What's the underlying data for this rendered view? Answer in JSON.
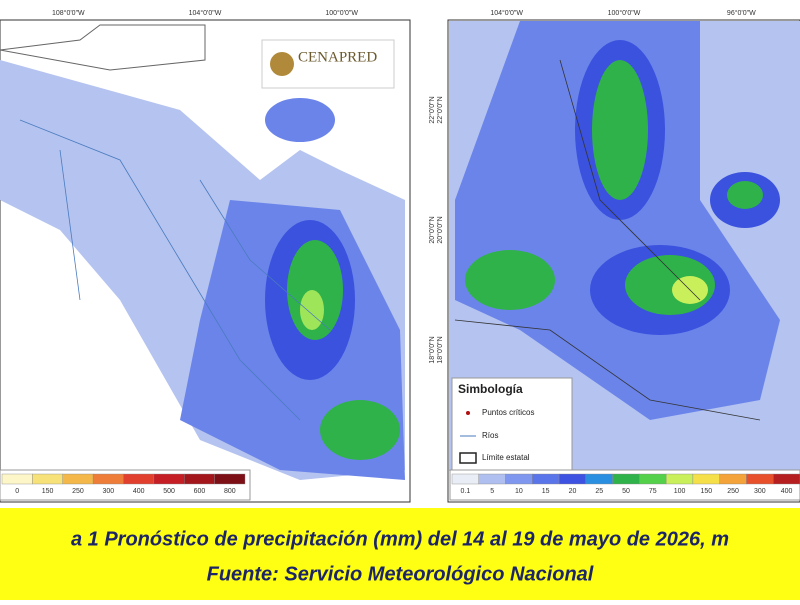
{
  "left_map": {
    "logo": "CENAPRED",
    "top_labels": [
      "108°0'0\"W",
      "104°0'0\"W",
      "100°0'0\"W"
    ],
    "side_labels": [
      "22°0'0\"N",
      "20°0'0\"N",
      "18°0'0\"N"
    ],
    "scale": {
      "labels": [
        "0",
        "150",
        "250",
        "300",
        "400",
        "500",
        "600",
        "800"
      ],
      "colors": [
        "#fdf6c8",
        "#f7e27a",
        "#f4b84a",
        "#ee7d3a",
        "#e2402e",
        "#c51f25",
        "#a3161c",
        "#7d0f16"
      ]
    }
  },
  "right_map": {
    "top_labels": [
      "104°0'0\"W",
      "100°0'0\"W",
      "96°0'0\"W"
    ],
    "side_labels": [
      "22°0'0\"N",
      "20°0'0\"N",
      "18°0'0\"N"
    ],
    "legend": {
      "title": "Simbología",
      "items": [
        "Puntos críticos",
        "Ríos",
        "Límite estatal"
      ]
    },
    "scale": {
      "labels": [
        "0.1",
        "5",
        "10",
        "15",
        "20",
        "25",
        "50",
        "75",
        "100",
        "150",
        "250",
        "300",
        "400"
      ],
      "colors": [
        "#e9eef6",
        "#aebff0",
        "#7f97ee",
        "#5a74ea",
        "#3d52e0",
        "#2a8fe0",
        "#2fb24a",
        "#55d04a",
        "#c9f05a",
        "#f6e04a",
        "#f4a23a",
        "#e8502c",
        "#b51f1f"
      ]
    }
  },
  "caption": {
    "line1": "a 1 Pronóstico de precipitación (mm) del 14 al 19 de mayo de 2026, m",
    "line2": "Fuente: Servicio Meteorológico Nacional"
  }
}
